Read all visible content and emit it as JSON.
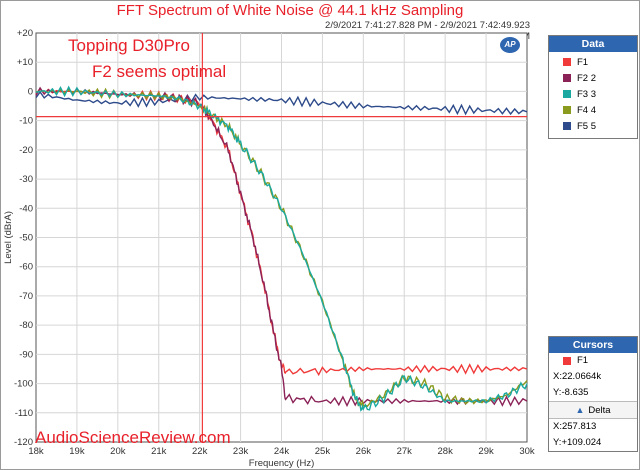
{
  "header": {
    "title": "FFT Spectrum of White Noise @ 44.1 kHz Sampling",
    "timestamp": "2/9/2021 7:41:27.828 PM - 2/9/2021 7:42:49.923 PM"
  },
  "annotations": {
    "device": "Topping D30Pro",
    "note": "F2 seems optimal",
    "watermark": "AudioScienceReview.com"
  },
  "logo_text": "AP",
  "legend": {
    "title": "Data",
    "items": [
      {
        "label": "F1",
        "color": "#f03a3a"
      },
      {
        "label": "F2 2",
        "color": "#8b2257"
      },
      {
        "label": "F3 3",
        "color": "#1aa8a0"
      },
      {
        "label": "F4 4",
        "color": "#8a9a1c"
      },
      {
        "label": "F5 5",
        "color": "#2d4a8a"
      }
    ]
  },
  "cursors": {
    "title": "Cursors",
    "series": "F1",
    "x": "X:22.0664k",
    "y": "Y:-8.635",
    "delta_label": "Delta",
    "dx": "X:257.813",
    "dy": "Y:+109.024"
  },
  "chart_data": {
    "type": "line",
    "title": "FFT Spectrum of White Noise @ 44.1 kHz Sampling",
    "xlabel": "Frequency (Hz)",
    "ylabel": "Level (dBrA)",
    "xlim": [
      18000,
      30000
    ],
    "ylim": [
      -120,
      20
    ],
    "grid": true,
    "legend_position": "right",
    "x_ticks": [
      "18k",
      "19k",
      "20k",
      "21k",
      "22k",
      "23k",
      "24k",
      "25k",
      "26k",
      "27k",
      "28k",
      "29k",
      "30k"
    ],
    "y_ticks": [
      "+20",
      "+10",
      "0",
      "-10",
      "-20",
      "-30",
      "-40",
      "-50",
      "-60",
      "-70",
      "-80",
      "-90",
      "-100",
      "-110",
      "-120"
    ],
    "cursor": {
      "x": 22066.4,
      "y": -8.635
    },
    "series": [
      {
        "name": "F1",
        "x": [
          18000,
          19000,
          20000,
          21000,
          21500,
          22000,
          22300,
          22700,
          23000,
          23300,
          23600,
          23800,
          24000,
          24100,
          25000,
          26000,
          27000,
          28000,
          29000,
          30000
        ],
        "y": [
          0,
          0,
          -1,
          -1.5,
          -2.5,
          -4,
          -10,
          -20,
          -35,
          -50,
          -68,
          -82,
          -94,
          -96,
          -95.5,
          -95,
          -95,
          -95,
          -95,
          -95
        ]
      },
      {
        "name": "F2 2",
        "x": [
          18000,
          19000,
          20000,
          21000,
          21500,
          22000,
          22300,
          22700,
          23000,
          23300,
          23600,
          23800,
          24000,
          24100,
          25000,
          26000,
          27000,
          28000,
          29000,
          30000
        ],
        "y": [
          0,
          0,
          -1,
          -1.5,
          -2.5,
          -4,
          -10,
          -20,
          -35,
          -50,
          -68,
          -82,
          -95,
          -105,
          -106,
          -106,
          -106,
          -106,
          -106,
          -106
        ]
      },
      {
        "name": "F3 3",
        "x": [
          18000,
          19000,
          20000,
          21000,
          21500,
          22000,
          22300,
          22700,
          23000,
          23500,
          24000,
          24500,
          25000,
          25500,
          25800,
          26000,
          26500,
          27000,
          27500,
          28000,
          28500,
          29000,
          29500,
          30000
        ],
        "y": [
          0,
          0,
          -1,
          -1.5,
          -2.5,
          -5,
          -8,
          -12,
          -18,
          -28,
          -40,
          -55,
          -72,
          -92,
          -105,
          -109,
          -105,
          -98,
          -101,
          -106,
          -106,
          -106,
          -104,
          -100
        ]
      },
      {
        "name": "F4 4",
        "x": [
          18000,
          19000,
          20000,
          21000,
          21500,
          22000,
          22300,
          22700,
          23000,
          23500,
          24000,
          24500,
          25000,
          25500,
          25800,
          26000,
          26500,
          27000,
          27500,
          28000,
          28500,
          29000,
          29500,
          30000
        ],
        "y": [
          0,
          0,
          -1,
          -1.5,
          -2.5,
          -5,
          -8,
          -12,
          -18,
          -28,
          -40,
          -55,
          -72,
          -92,
          -105,
          -108,
          -104,
          -98,
          -100,
          -105,
          -106,
          -106,
          -104,
          -99
        ]
      },
      {
        "name": "F5 5",
        "x": [
          18000,
          19000,
          20000,
          21000,
          22000,
          23000,
          24000,
          25000,
          26000,
          27000,
          28000,
          29000,
          30000
        ],
        "y": [
          -1,
          -3,
          -4,
          -3.5,
          -2,
          -2.5,
          -3,
          -4,
          -5,
          -5.5,
          -6,
          -6.5,
          -7
        ]
      }
    ]
  }
}
